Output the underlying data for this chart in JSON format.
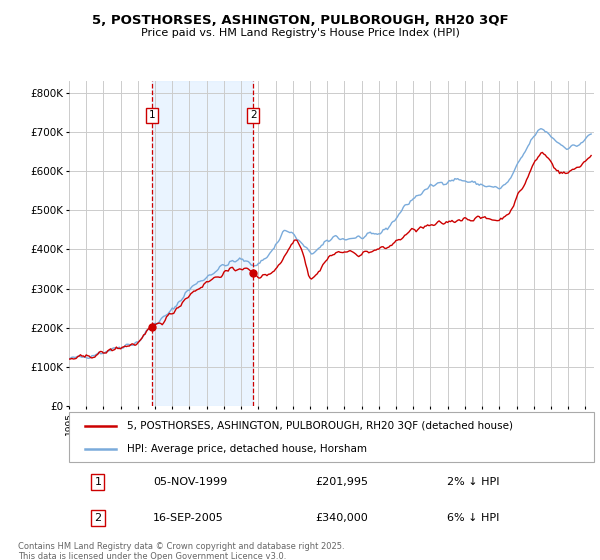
{
  "title": "5, POSTHORSES, ASHINGTON, PULBOROUGH, RH20 3QF",
  "subtitle": "Price paid vs. HM Land Registry's House Price Index (HPI)",
  "ylabel_ticks": [
    "£0",
    "£100K",
    "£200K",
    "£300K",
    "£400K",
    "£500K",
    "£600K",
    "£700K",
    "£800K"
  ],
  "ylim": [
    0,
    830000
  ],
  "xlim_start": 1995,
  "xlim_end": 2025.5,
  "sale1_t": 1999.833,
  "sale1_price": 201995,
  "sale2_t": 2005.708,
  "sale2_price": 340000,
  "legend_line1": "5, POSTHORSES, ASHINGTON, PULBOROUGH, RH20 3QF (detached house)",
  "legend_line2": "HPI: Average price, detached house, Horsham",
  "table_row1_num": "1",
  "table_row1_date": "05-NOV-1999",
  "table_row1_price": "£201,995",
  "table_row1_hpi": "2% ↓ HPI",
  "table_row2_num": "2",
  "table_row2_date": "16-SEP-2005",
  "table_row2_price": "£340,000",
  "table_row2_hpi": "6% ↓ HPI",
  "footnote": "Contains HM Land Registry data © Crown copyright and database right 2025.\nThis data is licensed under the Open Government Licence v3.0.",
  "color_sale": "#cc0000",
  "color_hpi": "#7aabdb",
  "color_grid": "#cccccc",
  "color_bg_span": "#ddeeff",
  "background_color": "#ffffff",
  "hpi_anchors": [
    [
      1995.0,
      120000
    ],
    [
      1996.0,
      127000
    ],
    [
      1997.0,
      138000
    ],
    [
      1998.0,
      152000
    ],
    [
      1999.0,
      163000
    ],
    [
      1999.833,
      206000
    ],
    [
      2000.5,
      225000
    ],
    [
      2001.0,
      245000
    ],
    [
      2002.0,
      300000
    ],
    [
      2003.0,
      330000
    ],
    [
      2004.0,
      360000
    ],
    [
      2005.0,
      375000
    ],
    [
      2005.708,
      360000
    ],
    [
      2006.0,
      365000
    ],
    [
      2006.5,
      380000
    ],
    [
      2007.0,
      410000
    ],
    [
      2007.5,
      450000
    ],
    [
      2008.0,
      440000
    ],
    [
      2008.5,
      415000
    ],
    [
      2009.0,
      390000
    ],
    [
      2009.5,
      400000
    ],
    [
      2010.0,
      420000
    ],
    [
      2010.5,
      435000
    ],
    [
      2011.0,
      425000
    ],
    [
      2011.5,
      430000
    ],
    [
      2012.0,
      430000
    ],
    [
      2012.5,
      435000
    ],
    [
      2013.0,
      440000
    ],
    [
      2013.5,
      455000
    ],
    [
      2014.0,
      480000
    ],
    [
      2014.5,
      510000
    ],
    [
      2015.0,
      530000
    ],
    [
      2015.5,
      545000
    ],
    [
      2016.0,
      560000
    ],
    [
      2016.5,
      570000
    ],
    [
      2017.0,
      575000
    ],
    [
      2017.5,
      580000
    ],
    [
      2018.0,
      575000
    ],
    [
      2018.5,
      570000
    ],
    [
      2019.0,
      565000
    ],
    [
      2019.5,
      560000
    ],
    [
      2020.0,
      555000
    ],
    [
      2020.5,
      570000
    ],
    [
      2021.0,
      610000
    ],
    [
      2021.5,
      650000
    ],
    [
      2022.0,
      690000
    ],
    [
      2022.5,
      710000
    ],
    [
      2023.0,
      690000
    ],
    [
      2023.5,
      670000
    ],
    [
      2024.0,
      660000
    ],
    [
      2024.5,
      665000
    ],
    [
      2025.0,
      680000
    ],
    [
      2025.3,
      695000
    ]
  ],
  "prop_anchors": [
    [
      1995.0,
      120000
    ],
    [
      1996.0,
      125000
    ],
    [
      1997.0,
      136000
    ],
    [
      1998.0,
      150000
    ],
    [
      1999.0,
      160000
    ],
    [
      1999.833,
      201995
    ],
    [
      2000.5,
      218000
    ],
    [
      2001.0,
      238000
    ],
    [
      2002.0,
      285000
    ],
    [
      2003.0,
      316000
    ],
    [
      2004.0,
      340000
    ],
    [
      2005.0,
      355000
    ],
    [
      2005.708,
      340000
    ],
    [
      2006.0,
      330000
    ],
    [
      2006.5,
      335000
    ],
    [
      2007.0,
      350000
    ],
    [
      2007.5,
      380000
    ],
    [
      2008.0,
      420000
    ],
    [
      2008.3,
      430000
    ],
    [
      2008.6,
      390000
    ],
    [
      2009.0,
      325000
    ],
    [
      2009.5,
      340000
    ],
    [
      2010.0,
      380000
    ],
    [
      2010.5,
      390000
    ],
    [
      2011.0,
      395000
    ],
    [
      2011.5,
      390000
    ],
    [
      2012.0,
      390000
    ],
    [
      2012.5,
      395000
    ],
    [
      2013.0,
      400000
    ],
    [
      2013.5,
      405000
    ],
    [
      2014.0,
      420000
    ],
    [
      2014.5,
      435000
    ],
    [
      2015.0,
      450000
    ],
    [
      2015.5,
      455000
    ],
    [
      2016.0,
      460000
    ],
    [
      2016.5,
      465000
    ],
    [
      2017.0,
      470000
    ],
    [
      2017.5,
      475000
    ],
    [
      2018.0,
      480000
    ],
    [
      2018.5,
      478000
    ],
    [
      2019.0,
      480000
    ],
    [
      2019.5,
      478000
    ],
    [
      2020.0,
      475000
    ],
    [
      2020.5,
      490000
    ],
    [
      2021.0,
      530000
    ],
    [
      2021.5,
      570000
    ],
    [
      2022.0,
      620000
    ],
    [
      2022.5,
      650000
    ],
    [
      2023.0,
      625000
    ],
    [
      2023.5,
      595000
    ],
    [
      2024.0,
      595000
    ],
    [
      2024.5,
      610000
    ],
    [
      2025.0,
      625000
    ],
    [
      2025.3,
      640000
    ]
  ]
}
